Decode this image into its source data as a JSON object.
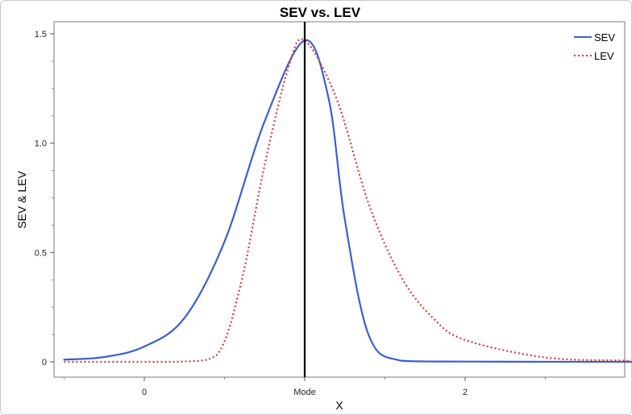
{
  "chart_data": {
    "type": "line",
    "title": "SEV vs. LEV",
    "xlabel": "X",
    "ylabel": "SEV & LEV",
    "xlim": [
      -1.5,
      4
    ],
    "ylim": [
      0,
      1.5
    ],
    "x_ticks": [
      {
        "value": 0,
        "label": "0"
      },
      {
        "value": 1,
        "label": "Mode"
      },
      {
        "value": 2,
        "label": "2"
      }
    ],
    "y_ticks": [
      {
        "value": 0,
        "label": "0"
      },
      {
        "value": 0.5,
        "label": "0.5"
      },
      {
        "value": 1.0,
        "label": "1.0"
      },
      {
        "value": 1.5,
        "label": "1.5"
      }
    ],
    "vertical_line": {
      "x": 1,
      "color": "#000000"
    },
    "legend_position": "top-right",
    "grid": false,
    "series": [
      {
        "name": "SEV",
        "color": "#3b5fd0",
        "style": "solid",
        "points": [
          [
            -0.5,
            0.01
          ],
          [
            -0.25,
            0.022
          ],
          [
            0,
            0.07
          ],
          [
            0.25,
            0.2
          ],
          [
            0.5,
            0.55
          ],
          [
            0.75,
            1.1
          ],
          [
            1.0,
            1.47
          ],
          [
            1.15,
            1.2
          ],
          [
            1.25,
            0.65
          ],
          [
            1.4,
            0.12
          ],
          [
            1.6,
            0.005
          ],
          [
            2.0,
            0.001
          ],
          [
            3.0,
            0.0
          ],
          [
            4.0,
            0.0
          ]
        ]
      },
      {
        "name": "LEV",
        "color": "#d83a3f",
        "style": "dotted",
        "points": [
          [
            -0.5,
            0.0
          ],
          [
            0.2,
            0.0
          ],
          [
            0.45,
            0.03
          ],
          [
            0.6,
            0.35
          ],
          [
            0.75,
            0.9
          ],
          [
            0.9,
            1.35
          ],
          [
            1.0,
            1.47
          ],
          [
            1.2,
            1.2
          ],
          [
            1.4,
            0.72
          ],
          [
            1.6,
            0.39
          ],
          [
            1.8,
            0.2
          ],
          [
            2.0,
            0.1
          ],
          [
            2.5,
            0.02
          ],
          [
            3.0,
            0.005
          ],
          [
            4.0,
            0.0
          ]
        ]
      }
    ]
  }
}
